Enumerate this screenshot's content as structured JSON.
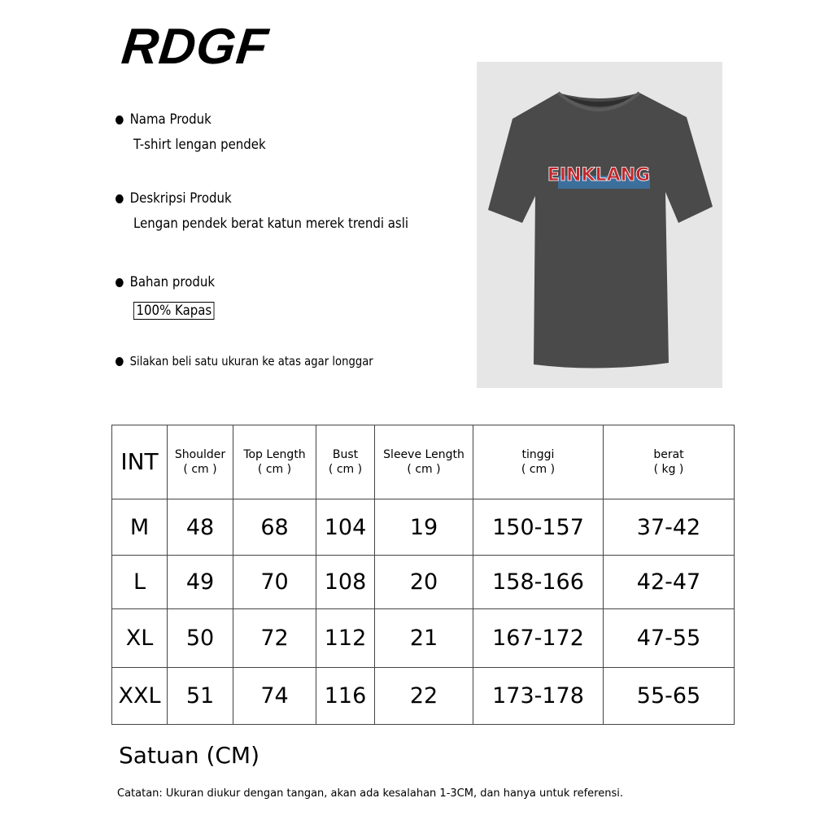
{
  "brand": "RDGF",
  "product_info": [
    {
      "label": "Nama Produk",
      "value": "T-shirt lengan pendek"
    },
    {
      "label": "Deskripsi Produk",
      "value": "Lengan pendek berat katun merek trendi asli"
    },
    {
      "label": "Bahan produk",
      "value": "100% Kapas"
    }
  ],
  "tip": "Silakan beli satu ukuran ke atas agar longgar",
  "product_image": {
    "shirt_print": "EINKLANG",
    "shirt_color": "#4a4a4a",
    "print_colors": [
      "#c0272d",
      "#3a78b0"
    ]
  },
  "size_table": {
    "headers": [
      {
        "name": "INT",
        "unit": ""
      },
      {
        "name": "Shoulder",
        "unit": "( cm )"
      },
      {
        "name": "Top Length",
        "unit": "( cm )"
      },
      {
        "name": "Bust",
        "unit": "( cm )"
      },
      {
        "name": "Sleeve Length",
        "unit": "( cm )"
      },
      {
        "name": "tinggi",
        "unit": "( cm )"
      },
      {
        "name": "berat",
        "unit": "( kg )"
      }
    ],
    "rows": [
      [
        "M",
        "48",
        "68",
        "104",
        "19",
        "150-157",
        "37-42"
      ],
      [
        "L",
        "49",
        "70",
        "108",
        "20",
        "158-166",
        "42-47"
      ],
      [
        "XL",
        "50",
        "72",
        "112",
        "21",
        "167-172",
        "47-55"
      ],
      [
        "XXL",
        "51",
        "74",
        "116",
        "22",
        "173-178",
        "55-65"
      ]
    ]
  },
  "unit_label": "Satuan (CM)",
  "note": "Catatan: Ukuran diukur dengan tangan, akan ada kesalahan 1-3CM, dan hanya untuk referensi."
}
